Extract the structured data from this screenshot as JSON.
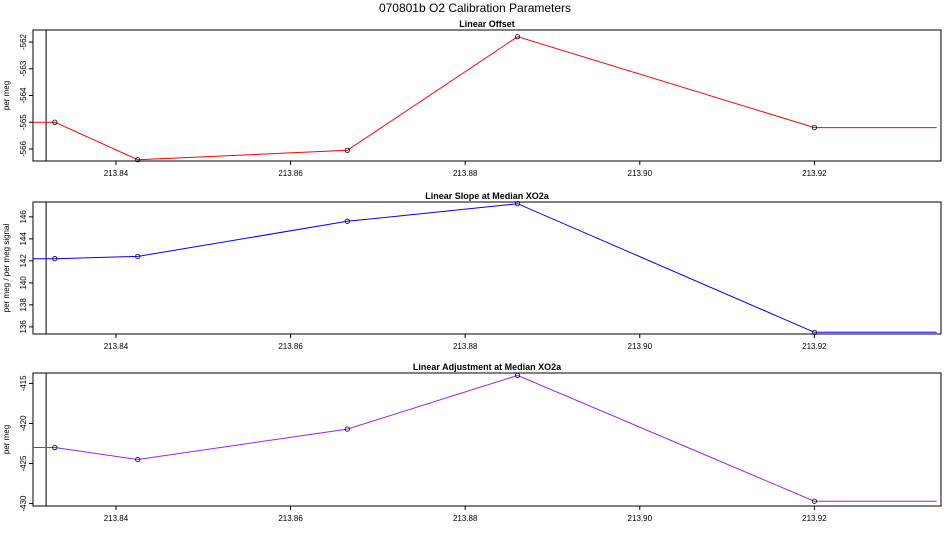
{
  "figure": {
    "title": "070801b   O2 Calibration Parameters"
  },
  "chart_data": [
    {
      "type": "line",
      "title": "Linear Offset",
      "xlabel": "",
      "ylabel": "per meg",
      "color": "#ff0000",
      "xlim": [
        213.8305,
        213.9345
      ],
      "ylim": [
        -566.45,
        -561.55
      ],
      "x_ticks": [
        "213.84",
        "213.86",
        "213.88",
        "213.90",
        "213.92"
      ],
      "y_ticks": [
        "-566",
        "-565",
        "-564",
        "-563",
        "-562"
      ],
      "reference_line_x": 213.832,
      "points": {
        "x": [
          213.833,
          213.8425,
          213.8665,
          213.886,
          213.92
        ],
        "y": [
          -565.0,
          -566.4,
          -566.05,
          -561.8,
          -565.2
        ]
      },
      "line_start_x": 213.8305,
      "line_end_x": 213.934
    },
    {
      "type": "line",
      "title": "Linear Slope at Median XO2a",
      "xlabel": "",
      "ylabel": "per meg / per meg signal",
      "color": "#0000ff",
      "xlim": [
        213.8305,
        213.9345
      ],
      "ylim": [
        135.35,
        147.35
      ],
      "x_ticks": [
        "213.84",
        "213.86",
        "213.88",
        "213.90",
        "213.92"
      ],
      "y_ticks": [
        "136",
        "138",
        "140",
        "142",
        "144",
        "146"
      ],
      "reference_line_x": 213.832,
      "points": {
        "x": [
          213.833,
          213.8425,
          213.8665,
          213.886,
          213.92
        ],
        "y": [
          142.2,
          142.4,
          145.6,
          147.2,
          135.5
        ]
      },
      "line_start_x": 213.8305,
      "line_end_x": 213.934
    },
    {
      "type": "line",
      "title": "Linear Adjustment at Median XO2a",
      "xlabel": "",
      "ylabel": "per meg",
      "color": "#a020f0",
      "xlim": [
        213.8305,
        213.9345
      ],
      "ylim": [
        -430.3,
        -413.7
      ],
      "x_ticks": [
        "213.84",
        "213.86",
        "213.88",
        "213.90",
        "213.92"
      ],
      "y_ticks": [
        "-430",
        "-425",
        "-420",
        "-415"
      ],
      "reference_line_x": 213.832,
      "points": {
        "x": [
          213.833,
          213.8425,
          213.8665,
          213.886,
          213.92
        ],
        "y": [
          -423.0,
          -424.5,
          -420.7,
          -414.0,
          -429.7
        ]
      },
      "line_start_x": 213.8305,
      "line_end_x": 213.934
    }
  ]
}
